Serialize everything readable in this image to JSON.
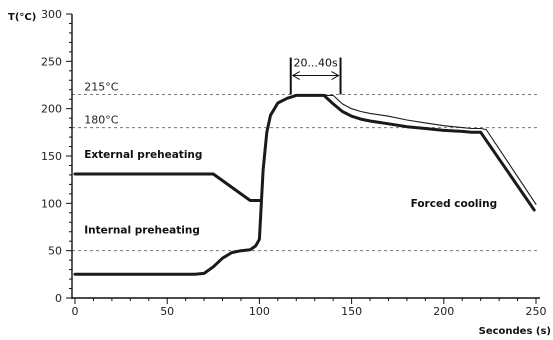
{
  "chart_data": {
    "type": "line",
    "xlabel": "Secondes (s)",
    "ylabel": "T(°C)",
    "xlim": [
      0,
      250
    ],
    "ylim": [
      0,
      300
    ],
    "x_ticks": [
      0,
      50,
      100,
      150,
      200,
      250
    ],
    "y_ticks": [
      0,
      50,
      100,
      150,
      200,
      250,
      300
    ],
    "minor_x_step": 10,
    "minor_y_step": 10,
    "grid": false,
    "reference_lines": [
      {
        "y": 215,
        "label": "215°C",
        "style": "dashed"
      },
      {
        "y": 180,
        "label": "180°C",
        "style": "dashed"
      },
      {
        "y": 50,
        "label": "",
        "style": "dashed"
      }
    ],
    "series": [
      {
        "style": "thin",
        "x": [
          0,
          65,
          70,
          75,
          80,
          85,
          90,
          95,
          98,
          100,
          102,
          104,
          106,
          110,
          115,
          120,
          125,
          130,
          135,
          140,
          145,
          150,
          155,
          160,
          170,
          180,
          190,
          200,
          210,
          215,
          220,
          223,
          250
        ],
        "y": [
          25,
          25,
          26,
          33,
          42,
          48,
          50,
          51,
          55,
          62,
          135,
          175,
          193,
          206,
          211,
          214,
          214,
          214,
          214,
          214,
          205,
          200,
          197,
          195,
          192,
          188,
          185,
          182,
          180,
          179,
          179,
          178,
          99
        ]
      },
      {
        "style": "thick",
        "x": [
          0,
          65,
          70,
          75,
          80,
          85,
          90,
          95,
          98,
          100,
          102,
          104,
          106,
          110,
          115,
          120,
          125,
          130,
          135,
          140,
          145,
          150,
          155,
          160,
          170,
          180,
          190,
          200,
          210,
          215,
          220,
          249
        ],
        "y": [
          25,
          25,
          26,
          33,
          42,
          48,
          50,
          51,
          55,
          62,
          135,
          175,
          193,
          206,
          211,
          214,
          214,
          214,
          214,
          205,
          197,
          192,
          189,
          187,
          184,
          181,
          179,
          177,
          176,
          175,
          175,
          93
        ]
      },
      {
        "style": "thick",
        "x": [
          0,
          75,
          95,
          100
        ],
        "y": [
          131,
          131,
          103,
          103
        ]
      }
    ],
    "annotations": [
      {
        "text": "External preheating",
        "x": 5,
        "y": 148
      },
      {
        "text": "Internal preheating",
        "x": 5,
        "y": 68
      },
      {
        "text": "Forced cooling",
        "x": 182,
        "y": 96
      }
    ],
    "dimension": {
      "label": "20...40s",
      "x_start": 117,
      "x_end": 144,
      "y": 235
    }
  }
}
